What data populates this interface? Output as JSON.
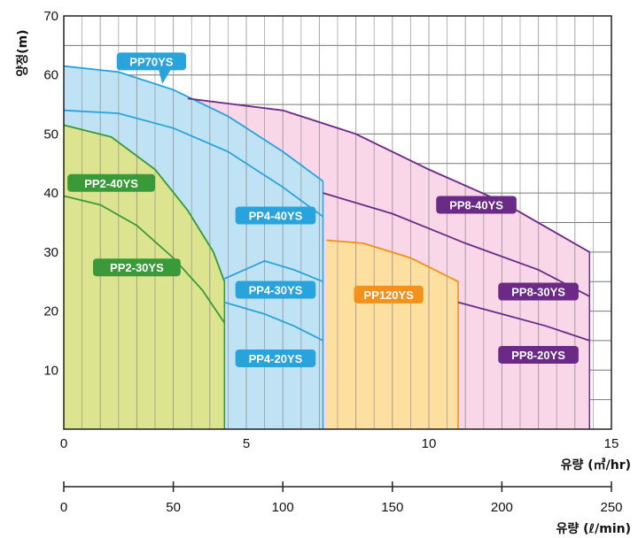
{
  "chart_data": {
    "type": "area",
    "title": "",
    "ylabel": "양정(m)",
    "xlabel": "유량 (㎥/hr)",
    "xlabel2": "유량 (ℓ/min)",
    "ylim": [
      0,
      70
    ],
    "xlim": [
      0,
      15
    ],
    "xlim2": [
      0,
      250
    ],
    "yticks": [
      "0",
      "10",
      "20",
      "30",
      "40",
      "50",
      "60",
      "70"
    ],
    "xticks": [
      "0",
      "5",
      "10",
      "15"
    ],
    "xticks2": [
      "0",
      "50",
      "100",
      "150",
      "200",
      "250"
    ],
    "grid": true,
    "colors": {
      "pp2_fill": "#dde48f",
      "pp2_line": "#3a9a3a",
      "pp4_fill": "#bfe3f4",
      "pp4_line": "#29a3dc",
      "pp8_fill": "#f9d6e8",
      "pp8_line": "#6b2a86",
      "pp120_fill": "#fde0a0",
      "pp120_line": "#f2911b"
    },
    "regions": [
      {
        "family": "pp8",
        "points": [
          [
            3.4,
            56
          ],
          [
            6,
            54
          ],
          [
            8,
            50
          ],
          [
            10,
            44
          ],
          [
            12,
            38.5
          ],
          [
            14.4,
            30
          ],
          [
            14.4,
            0
          ],
          [
            3.4,
            0
          ]
        ]
      },
      {
        "family": "pp4",
        "points": [
          [
            0,
            61.5
          ],
          [
            1.5,
            60.5
          ],
          [
            3,
            57.5
          ],
          [
            4.5,
            53
          ],
          [
            6,
            47
          ],
          [
            7.1,
            42
          ],
          [
            7.1,
            0
          ],
          [
            0,
            0
          ]
        ]
      },
      {
        "family": "pp120",
        "points": [
          [
            7.2,
            32
          ],
          [
            8.2,
            31.5
          ],
          [
            9.5,
            29
          ],
          [
            10.8,
            25
          ],
          [
            10.8,
            0
          ],
          [
            7.2,
            0
          ]
        ]
      },
      {
        "family": "pp2",
        "points": [
          [
            0,
            51.5
          ],
          [
            1.3,
            49.5
          ],
          [
            2.5,
            44
          ],
          [
            3.4,
            37
          ],
          [
            4.1,
            30
          ],
          [
            4.4,
            25
          ],
          [
            4.4,
            0
          ],
          [
            0,
            0
          ]
        ]
      }
    ],
    "series": [
      {
        "name": "PP70YS",
        "family": "pp4",
        "points": [
          [
            0,
            61.5
          ],
          [
            1.5,
            60.5
          ],
          [
            3,
            57.5
          ],
          [
            4.5,
            53
          ],
          [
            6,
            47
          ],
          [
            7.1,
            42
          ]
        ]
      },
      {
        "name": "PP4-40YS",
        "family": "pp4",
        "points": [
          [
            0,
            54
          ],
          [
            1.5,
            53.5
          ],
          [
            3,
            51
          ],
          [
            4.5,
            47
          ],
          [
            6,
            41
          ],
          [
            7.1,
            36
          ]
        ]
      },
      {
        "name": "PP4-30YS",
        "family": "pp4",
        "points": [
          [
            4.4,
            25.5
          ],
          [
            5.5,
            28.5
          ],
          [
            6.3,
            27
          ],
          [
            7.1,
            25
          ]
        ]
      },
      {
        "name": "PP4-20YS",
        "family": "pp4",
        "points": [
          [
            4.4,
            21.5
          ],
          [
            5.5,
            19.5
          ],
          [
            6.3,
            17.5
          ],
          [
            7.1,
            15
          ]
        ]
      },
      {
        "name": "PP2-40YS",
        "family": "pp2",
        "points": [
          [
            0,
            51.5
          ],
          [
            1.3,
            49.5
          ],
          [
            2.5,
            44
          ],
          [
            3.4,
            37
          ],
          [
            4.1,
            30
          ],
          [
            4.4,
            25
          ]
        ]
      },
      {
        "name": "PP2-30YS",
        "family": "pp2",
        "points": [
          [
            0,
            39.5
          ],
          [
            1,
            38
          ],
          [
            2,
            34.5
          ],
          [
            3,
            29
          ],
          [
            3.8,
            23.5
          ],
          [
            4.4,
            18
          ]
        ]
      },
      {
        "name": "PP8-40YS",
        "family": "pp8",
        "points": [
          [
            3.4,
            56
          ],
          [
            6,
            54
          ],
          [
            8,
            50
          ],
          [
            10,
            44
          ],
          [
            12,
            38.5
          ],
          [
            14.4,
            30
          ]
        ]
      },
      {
        "name": "PP8-30YS",
        "family": "pp8",
        "points": [
          [
            7.1,
            40
          ],
          [
            9,
            36.5
          ],
          [
            11,
            31.5
          ],
          [
            13,
            27
          ],
          [
            14.4,
            22.5
          ]
        ]
      },
      {
        "name": "PP8-20YS",
        "family": "pp8",
        "points": [
          [
            10.8,
            21.5
          ],
          [
            12,
            19.5
          ],
          [
            13.2,
            17.5
          ],
          [
            14.4,
            15
          ]
        ]
      },
      {
        "name": "PP120YS",
        "family": "pp120",
        "points": [
          [
            7.2,
            32
          ],
          [
            8.2,
            31.5
          ],
          [
            9.5,
            29
          ],
          [
            10.8,
            25
          ]
        ]
      }
    ],
    "labels": [
      {
        "text": "PP70YS",
        "family": "pp4",
        "x": 2.4,
        "y": 62.3,
        "w": 1.9,
        "pointer": [
          2.7,
          58.5
        ]
      },
      {
        "text": "PP2-40YS",
        "family": "pp2",
        "x": 1.3,
        "y": 41.7,
        "w": 2.4
      },
      {
        "text": "PP2-30YS",
        "family": "pp2",
        "x": 2.0,
        "y": 27.4,
        "w": 2.4
      },
      {
        "text": "PP4-40YS",
        "family": "pp4",
        "x": 5.8,
        "y": 36.2,
        "w": 2.2
      },
      {
        "text": "PP4-30YS",
        "family": "pp4",
        "x": 5.8,
        "y": 23.6,
        "w": 2.2
      },
      {
        "text": "PP4-20YS",
        "family": "pp4",
        "x": 5.8,
        "y": 12.0,
        "w": 2.2
      },
      {
        "text": "PP8-40YS",
        "family": "pp8",
        "x": 11.3,
        "y": 38.0,
        "w": 2.2
      },
      {
        "text": "PP8-30YS",
        "family": "pp8",
        "x": 13.0,
        "y": 23.3,
        "w": 2.2
      },
      {
        "text": "PP8-20YS",
        "family": "pp8",
        "x": 13.0,
        "y": 12.6,
        "w": 2.2
      },
      {
        "text": "PP120YS",
        "family": "pp120",
        "x": 8.9,
        "y": 22.8,
        "w": 1.9
      }
    ]
  }
}
